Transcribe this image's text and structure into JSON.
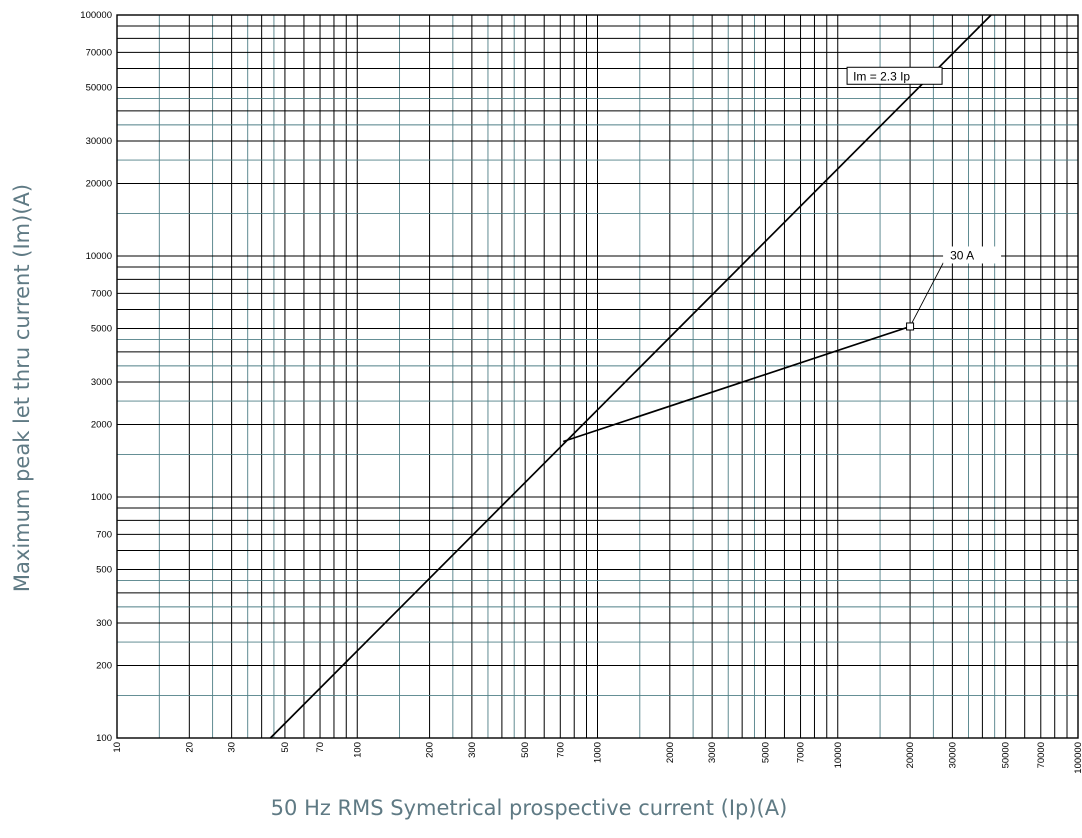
{
  "chart_data": {
    "type": "line",
    "title": "",
    "xlabel": "50 Hz RMS Symetrical prospective current (Ip)(A)",
    "ylabel": "Maximum peak let thru current (Im)(A)",
    "x_scale": "log",
    "y_scale": "log",
    "xlim": [
      10,
      100000
    ],
    "ylim": [
      100,
      100000
    ],
    "grid": true,
    "x_tick_labels": [
      "10",
      "20",
      "30",
      "50",
      "70",
      "100",
      "200",
      "300",
      "500",
      "700",
      "1000",
      "2000",
      "3000",
      "5000",
      "7000",
      "10000",
      "20000",
      "30000",
      "50000",
      "70000",
      "100000"
    ],
    "y_tick_labels": [
      "100",
      "200",
      "300",
      "500",
      "700",
      "1000",
      "2000",
      "3000",
      "5000",
      "7000",
      "10000",
      "20000",
      "30000",
      "50000",
      "70000",
      "100000"
    ],
    "series": [
      {
        "name": "Im = 2.3 Ip",
        "x": [
          43.5,
          43500
        ],
        "y": [
          100,
          100000
        ]
      },
      {
        "name": "30 A",
        "x": [
          720,
          20000
        ],
        "y": [
          1700,
          5100
        ]
      }
    ],
    "annotations": [
      {
        "text": "Im = 2.3 Ip",
        "x": 20000,
        "y": 46000
      },
      {
        "text": "30 A",
        "x": 20000,
        "y": 5100
      }
    ],
    "colors": {
      "major_grid": "#000000",
      "minor_grid": "#4f7f86",
      "axis_title": "#5f7a84",
      "curve": "#000000"
    }
  }
}
